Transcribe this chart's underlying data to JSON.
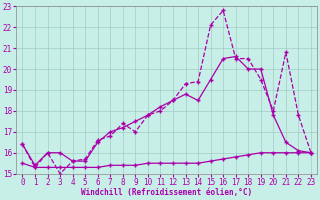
{
  "xlabel": "Windchill (Refroidissement éolien,°C)",
  "xlim": [
    -0.5,
    23.5
  ],
  "ylim": [
    15,
    23
  ],
  "yticks": [
    15,
    16,
    17,
    18,
    19,
    20,
    21,
    22,
    23
  ],
  "xticks": [
    0,
    1,
    2,
    3,
    4,
    5,
    6,
    7,
    8,
    9,
    10,
    11,
    12,
    13,
    14,
    15,
    16,
    17,
    18,
    19,
    20,
    21,
    22,
    23
  ],
  "background_color": "#c8eee8",
  "line_color": "#aa00aa",
  "grid_color": "#a0ccc4",
  "lines": [
    {
      "x": [
        0,
        1,
        2,
        3,
        4,
        5,
        6,
        7,
        8,
        9,
        10,
        11,
        12,
        13,
        14,
        15,
        16,
        17,
        18,
        19,
        20,
        21,
        22,
        23
      ],
      "y": [
        16.4,
        15.3,
        16.0,
        15.0,
        15.6,
        15.7,
        16.6,
        16.8,
        17.4,
        17.0,
        17.8,
        18.0,
        18.5,
        19.3,
        19.4,
        22.1,
        22.8,
        20.5,
        20.5,
        19.5,
        18.0,
        20.8,
        17.8,
        16.0
      ],
      "linestyle": "--",
      "marker": "+"
    },
    {
      "x": [
        0,
        1,
        2,
        3,
        4,
        5,
        6,
        7,
        8,
        9,
        10,
        11,
        12,
        13,
        14,
        15,
        16,
        17,
        18,
        19,
        20,
        21,
        22,
        23
      ],
      "y": [
        16.4,
        15.4,
        16.0,
        16.0,
        15.6,
        15.6,
        16.5,
        17.0,
        17.2,
        17.5,
        17.8,
        18.2,
        18.5,
        18.8,
        18.5,
        19.5,
        20.5,
        20.6,
        20.0,
        20.0,
        17.8,
        16.5,
        16.1,
        16.0
      ],
      "linestyle": "-",
      "marker": "+"
    },
    {
      "x": [
        0,
        1,
        2,
        3,
        4,
        5,
        6,
        7,
        8,
        9,
        10,
        11,
        12,
        13,
        14,
        15,
        16,
        17,
        18,
        19,
        20,
        21,
        22,
        23
      ],
      "y": [
        15.5,
        15.3,
        15.3,
        15.3,
        15.3,
        15.3,
        15.3,
        15.4,
        15.4,
        15.4,
        15.5,
        15.5,
        15.5,
        15.5,
        15.5,
        15.6,
        15.7,
        15.8,
        15.9,
        16.0,
        16.0,
        16.0,
        16.0,
        16.0
      ],
      "linestyle": "-",
      "marker": "+"
    }
  ]
}
